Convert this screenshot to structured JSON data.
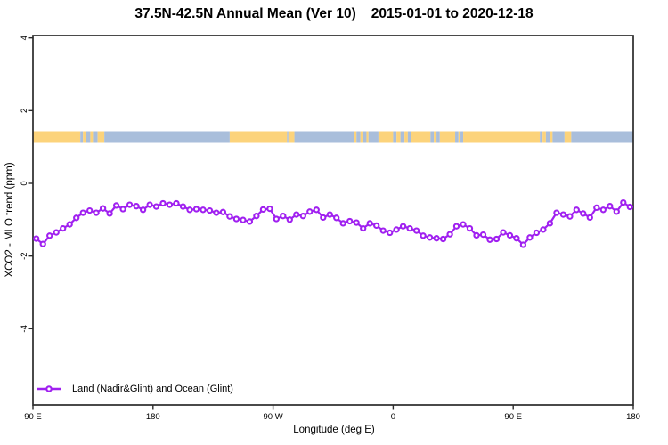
{
  "title": {
    "region_period": "37.5N-42.5N Annual Mean (Ver 10)",
    "date_range": "2015-01-01 to 2020-12-18"
  },
  "axes": {
    "x_label": "Longitude (deg E)",
    "y_label": "XCO2 - MLO trend (ppm)",
    "x_ticks": [
      {
        "deg": 90,
        "label": "90 E"
      },
      {
        "deg": 180,
        "label": "180"
      },
      {
        "deg": 270,
        "label": "90 W"
      },
      {
        "deg": 360,
        "label": "0"
      },
      {
        "deg": 450,
        "label": "90 E"
      },
      {
        "deg": 540,
        "label": "180"
      }
    ],
    "y_ticks": [
      {
        "value": 4,
        "label": "4"
      },
      {
        "value": 2,
        "label": "2"
      },
      {
        "value": 0,
        "label": "0"
      },
      {
        "value": -2,
        "label": "-2"
      },
      {
        "value": -4,
        "label": "-4"
      }
    ]
  },
  "legend": {
    "label": "Land (Nadir&Glint) and Ocean (Glint)",
    "symbol": "open-circle-on-line"
  },
  "colors": {
    "line": "#A020F0",
    "marker_fill": "#FFFFFF",
    "land": "#FCD37B",
    "ocean": "#A9BEDB",
    "frame": "#2B2B2B",
    "text": "#000000"
  },
  "chart_data": {
    "type": "line",
    "title": "37.5N-42.5N Annual Mean (Ver 10)  2015-01-01 to 2020-12-18",
    "xlabel": "Longitude (deg E)",
    "ylabel": "XCO2 - MLO trend (ppm)",
    "series_name": "Land (Nadir&Glint) and Ocean (Glint)",
    "marker": "open-circle",
    "grid": false,
    "legend_position": "bottom-left-inside",
    "x_axis_span_deg_east": [
      90,
      540
    ],
    "ylim": [
      -6.1,
      4.1
    ],
    "x_deg_east": [
      92.5,
      97.5,
      102.5,
      107.5,
      112.5,
      117.5,
      122.5,
      127.5,
      132.5,
      137.5,
      142.5,
      147.5,
      152.5,
      157.5,
      162.5,
      167.5,
      172.5,
      177.5,
      182.5,
      187.5,
      192.5,
      197.5,
      202.5,
      207.5,
      212.5,
      217.5,
      222.5,
      227.5,
      232.5,
      237.5,
      242.5,
      247.5,
      252.5,
      257.5,
      262.5,
      267.5,
      272.5,
      277.5,
      282.5,
      287.5,
      292.5,
      297.5,
      302.5,
      307.5,
      312.5,
      317.5,
      322.5,
      327.5,
      332.5,
      337.5,
      342.5,
      347.5,
      352.5,
      357.5,
      362.5,
      367.5,
      372.5,
      377.5,
      382.5,
      387.5,
      392.5,
      397.5,
      402.5,
      407.5,
      412.5,
      417.5,
      422.5,
      427.5,
      432.5,
      437.5,
      442.5,
      447.5,
      452.5,
      457.5,
      462.5,
      467.5,
      472.5,
      477.5,
      482.5,
      487.5,
      492.5,
      497.5,
      502.5,
      507.5,
      512.5,
      517.5,
      522.5,
      527.5,
      532.5,
      537.5
    ],
    "y_ppm": [
      -1.52,
      -1.67,
      -1.44,
      -1.35,
      -1.24,
      -1.13,
      -0.95,
      -0.81,
      -0.75,
      -0.81,
      -0.69,
      -0.83,
      -0.61,
      -0.71,
      -0.59,
      -0.63,
      -0.73,
      -0.59,
      -0.64,
      -0.55,
      -0.59,
      -0.55,
      -0.64,
      -0.73,
      -0.71,
      -0.73,
      -0.75,
      -0.81,
      -0.79,
      -0.91,
      -0.98,
      -1.01,
      -1.05,
      -0.9,
      -0.72,
      -0.7,
      -0.98,
      -0.9,
      -1.0,
      -0.86,
      -0.9,
      -0.78,
      -0.73,
      -0.94,
      -0.86,
      -0.95,
      -1.1,
      -1.04,
      -1.08,
      -1.24,
      -1.1,
      -1.16,
      -1.3,
      -1.36,
      -1.27,
      -1.18,
      -1.24,
      -1.3,
      -1.44,
      -1.49,
      -1.51,
      -1.53,
      -1.4,
      -1.18,
      -1.13,
      -1.24,
      -1.43,
      -1.41,
      -1.55,
      -1.53,
      -1.35,
      -1.43,
      -1.51,
      -1.69,
      -1.49,
      -1.36,
      -1.27,
      -1.1,
      -0.81,
      -0.86,
      -0.91,
      -0.73,
      -0.83,
      -0.94,
      -0.67,
      -0.73,
      -0.63,
      -0.78,
      -0.53,
      -0.65
    ],
    "map_strip": {
      "description": "land/ocean coastline band for the 37.5N-42.5N latitude zone",
      "y_range_ppm": [
        1.11,
        1.42
      ],
      "segments": [
        {
          "from": 90,
          "to": 125.5,
          "surface": "land"
        },
        {
          "from": 125.5,
          "to": 127.5,
          "surface": "ocean"
        },
        {
          "from": 127.5,
          "to": 130,
          "surface": "land"
        },
        {
          "from": 130,
          "to": 133,
          "surface": "ocean"
        },
        {
          "from": 133,
          "to": 135,
          "surface": "land"
        },
        {
          "from": 135,
          "to": 138.5,
          "surface": "ocean"
        },
        {
          "from": 138.5,
          "to": 143.5,
          "surface": "land"
        },
        {
          "from": 143.5,
          "to": 237.5,
          "surface": "ocean"
        },
        {
          "from": 237.5,
          "to": 280.5,
          "surface": "land"
        },
        {
          "from": 280.5,
          "to": 281.5,
          "surface": "ocean"
        },
        {
          "from": 281.5,
          "to": 286,
          "surface": "land"
        },
        {
          "from": 286,
          "to": 330.5,
          "surface": "ocean"
        },
        {
          "from": 330.5,
          "to": 332.5,
          "surface": "land"
        },
        {
          "from": 332.5,
          "to": 335.5,
          "surface": "ocean"
        },
        {
          "from": 335.5,
          "to": 337,
          "surface": "land"
        },
        {
          "from": 337,
          "to": 340,
          "surface": "ocean"
        },
        {
          "from": 340,
          "to": 341.5,
          "surface": "land"
        },
        {
          "from": 341.5,
          "to": 349,
          "surface": "ocean"
        },
        {
          "from": 349,
          "to": 360,
          "surface": "land"
        },
        {
          "from": 360,
          "to": 362.5,
          "surface": "ocean"
        },
        {
          "from": 362.5,
          "to": 365.5,
          "surface": "land"
        },
        {
          "from": 365.5,
          "to": 368.5,
          "surface": "ocean"
        },
        {
          "from": 368.5,
          "to": 371,
          "surface": "land"
        },
        {
          "from": 371,
          "to": 373.5,
          "surface": "ocean"
        },
        {
          "from": 373.5,
          "to": 388,
          "surface": "land"
        },
        {
          "from": 388,
          "to": 390.5,
          "surface": "ocean"
        },
        {
          "from": 390.5,
          "to": 392.5,
          "surface": "land"
        },
        {
          "from": 392.5,
          "to": 395,
          "surface": "ocean"
        },
        {
          "from": 395,
          "to": 406.5,
          "surface": "land"
        },
        {
          "from": 406.5,
          "to": 409,
          "surface": "ocean"
        },
        {
          "from": 409,
          "to": 410.5,
          "surface": "land"
        },
        {
          "from": 410.5,
          "to": 412.5,
          "surface": "ocean"
        },
        {
          "from": 412.5,
          "to": 470,
          "surface": "land"
        },
        {
          "from": 470,
          "to": 472,
          "surface": "ocean"
        },
        {
          "from": 472,
          "to": 474.5,
          "surface": "land"
        },
        {
          "from": 474.5,
          "to": 477.5,
          "surface": "ocean"
        },
        {
          "from": 477.5,
          "to": 479.5,
          "surface": "land"
        },
        {
          "from": 479.5,
          "to": 488.5,
          "surface": "ocean"
        },
        {
          "from": 488.5,
          "to": 493.5,
          "surface": "land"
        },
        {
          "from": 493.5,
          "to": 540,
          "surface": "ocean"
        }
      ]
    }
  }
}
